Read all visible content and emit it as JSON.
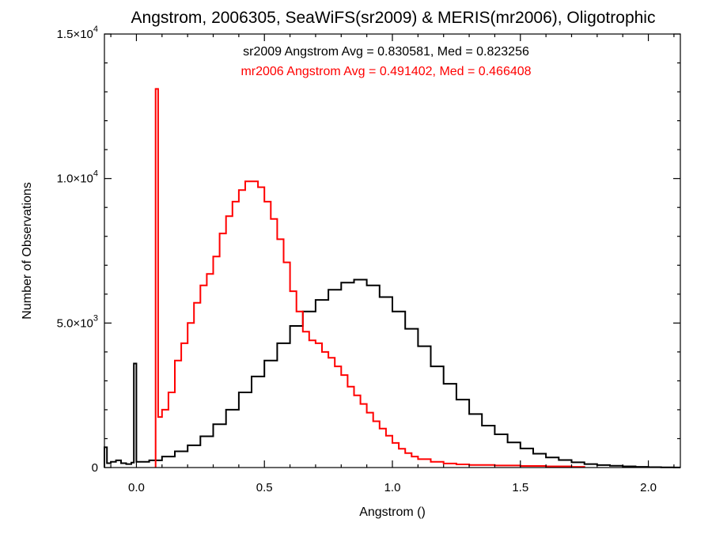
{
  "chart_data": {
    "type": "line",
    "style": "step-histogram",
    "title": "Angstrom, 2006305, SeaWiFS(sr2009) & MERIS(mr2006), Oligotrophic",
    "xlabel": "Angstrom ()",
    "ylabel": "Number of Observations",
    "xlim": [
      -0.125,
      2.125
    ],
    "ylim": [
      0,
      15000
    ],
    "x_ticks": [
      {
        "value": 0.0,
        "label": "0.0"
      },
      {
        "value": 0.5,
        "label": "0.5"
      },
      {
        "value": 1.0,
        "label": "1.0"
      },
      {
        "value": 1.5,
        "label": "1.5"
      },
      {
        "value": 2.0,
        "label": "2.0"
      }
    ],
    "y_ticks": [
      {
        "value": 0,
        "mant": "0",
        "exp": ""
      },
      {
        "value": 5000,
        "mant": "5.0×10",
        "exp": "3"
      },
      {
        "value": 10000,
        "mant": "1.0×10",
        "exp": "4"
      },
      {
        "value": 15000,
        "mant": "1.5×10",
        "exp": "4"
      }
    ],
    "annotations": [
      {
        "text": "sr2009 Angstrom Avg = 0.830581, Med = 0.823256",
        "color": "#000000"
      },
      {
        "text": "mr2006 Angstrom Avg = 0.491402, Med = 0.466408",
        "color": "#ff0000"
      }
    ],
    "grid": false,
    "series": [
      {
        "color": "#000000",
        "points": [
          [
            -0.125,
            700
          ],
          [
            -0.115,
            150
          ],
          [
            -0.1,
            200
          ],
          [
            -0.08,
            250
          ],
          [
            -0.06,
            150
          ],
          [
            -0.04,
            120
          ],
          [
            -0.02,
            170
          ],
          [
            -0.01,
            3600
          ],
          [
            0.0,
            200
          ],
          [
            0.05,
            250
          ],
          [
            0.1,
            380
          ],
          [
            0.15,
            560
          ],
          [
            0.2,
            770
          ],
          [
            0.25,
            1080
          ],
          [
            0.3,
            1500
          ],
          [
            0.35,
            2000
          ],
          [
            0.4,
            2600
          ],
          [
            0.45,
            3150
          ],
          [
            0.5,
            3700
          ],
          [
            0.55,
            4300
          ],
          [
            0.6,
            4900
          ],
          [
            0.65,
            5400
          ],
          [
            0.7,
            5800
          ],
          [
            0.75,
            6150
          ],
          [
            0.8,
            6400
          ],
          [
            0.85,
            6500
          ],
          [
            0.9,
            6300
          ],
          [
            0.95,
            5900
          ],
          [
            1.0,
            5400
          ],
          [
            1.05,
            4800
          ],
          [
            1.1,
            4200
          ],
          [
            1.15,
            3500
          ],
          [
            1.2,
            2900
          ],
          [
            1.25,
            2350
          ],
          [
            1.3,
            1850
          ],
          [
            1.35,
            1450
          ],
          [
            1.4,
            1150
          ],
          [
            1.45,
            870
          ],
          [
            1.5,
            660
          ],
          [
            1.55,
            480
          ],
          [
            1.6,
            350
          ],
          [
            1.65,
            260
          ],
          [
            1.7,
            180
          ],
          [
            1.75,
            120
          ],
          [
            1.8,
            85
          ],
          [
            1.85,
            60
          ],
          [
            1.9,
            40
          ],
          [
            1.95,
            25
          ],
          [
            2.0,
            15
          ],
          [
            2.05,
            8
          ],
          [
            2.1,
            4
          ],
          [
            2.125,
            4
          ]
        ]
      },
      {
        "color": "#ff0000",
        "points": [
          [
            0.075,
            13100
          ],
          [
            0.085,
            1750
          ],
          [
            0.1,
            2000
          ],
          [
            0.125,
            2600
          ],
          [
            0.15,
            3700
          ],
          [
            0.175,
            4300
          ],
          [
            0.2,
            5000
          ],
          [
            0.225,
            5700
          ],
          [
            0.25,
            6300
          ],
          [
            0.275,
            6700
          ],
          [
            0.3,
            7300
          ],
          [
            0.325,
            8100
          ],
          [
            0.35,
            8700
          ],
          [
            0.375,
            9200
          ],
          [
            0.4,
            9600
          ],
          [
            0.425,
            9900
          ],
          [
            0.45,
            9900
          ],
          [
            0.475,
            9700
          ],
          [
            0.5,
            9200
          ],
          [
            0.525,
            8600
          ],
          [
            0.55,
            7900
          ],
          [
            0.575,
            7100
          ],
          [
            0.6,
            6100
          ],
          [
            0.625,
            5400
          ],
          [
            0.65,
            4700
          ],
          [
            0.675,
            4400
          ],
          [
            0.7,
            4300
          ],
          [
            0.725,
            4000
          ],
          [
            0.75,
            3800
          ],
          [
            0.775,
            3500
          ],
          [
            0.8,
            3200
          ],
          [
            0.825,
            2800
          ],
          [
            0.85,
            2500
          ],
          [
            0.875,
            2200
          ],
          [
            0.9,
            1900
          ],
          [
            0.925,
            1600
          ],
          [
            0.95,
            1350
          ],
          [
            0.975,
            1100
          ],
          [
            1.0,
            850
          ],
          [
            1.025,
            650
          ],
          [
            1.05,
            500
          ],
          [
            1.075,
            380
          ],
          [
            1.1,
            290
          ],
          [
            1.15,
            200
          ],
          [
            1.2,
            140
          ],
          [
            1.25,
            110
          ],
          [
            1.3,
            90
          ],
          [
            1.4,
            70
          ],
          [
            1.5,
            55
          ],
          [
            1.6,
            40
          ],
          [
            1.7,
            25
          ],
          [
            1.75,
            0
          ]
        ]
      }
    ]
  }
}
